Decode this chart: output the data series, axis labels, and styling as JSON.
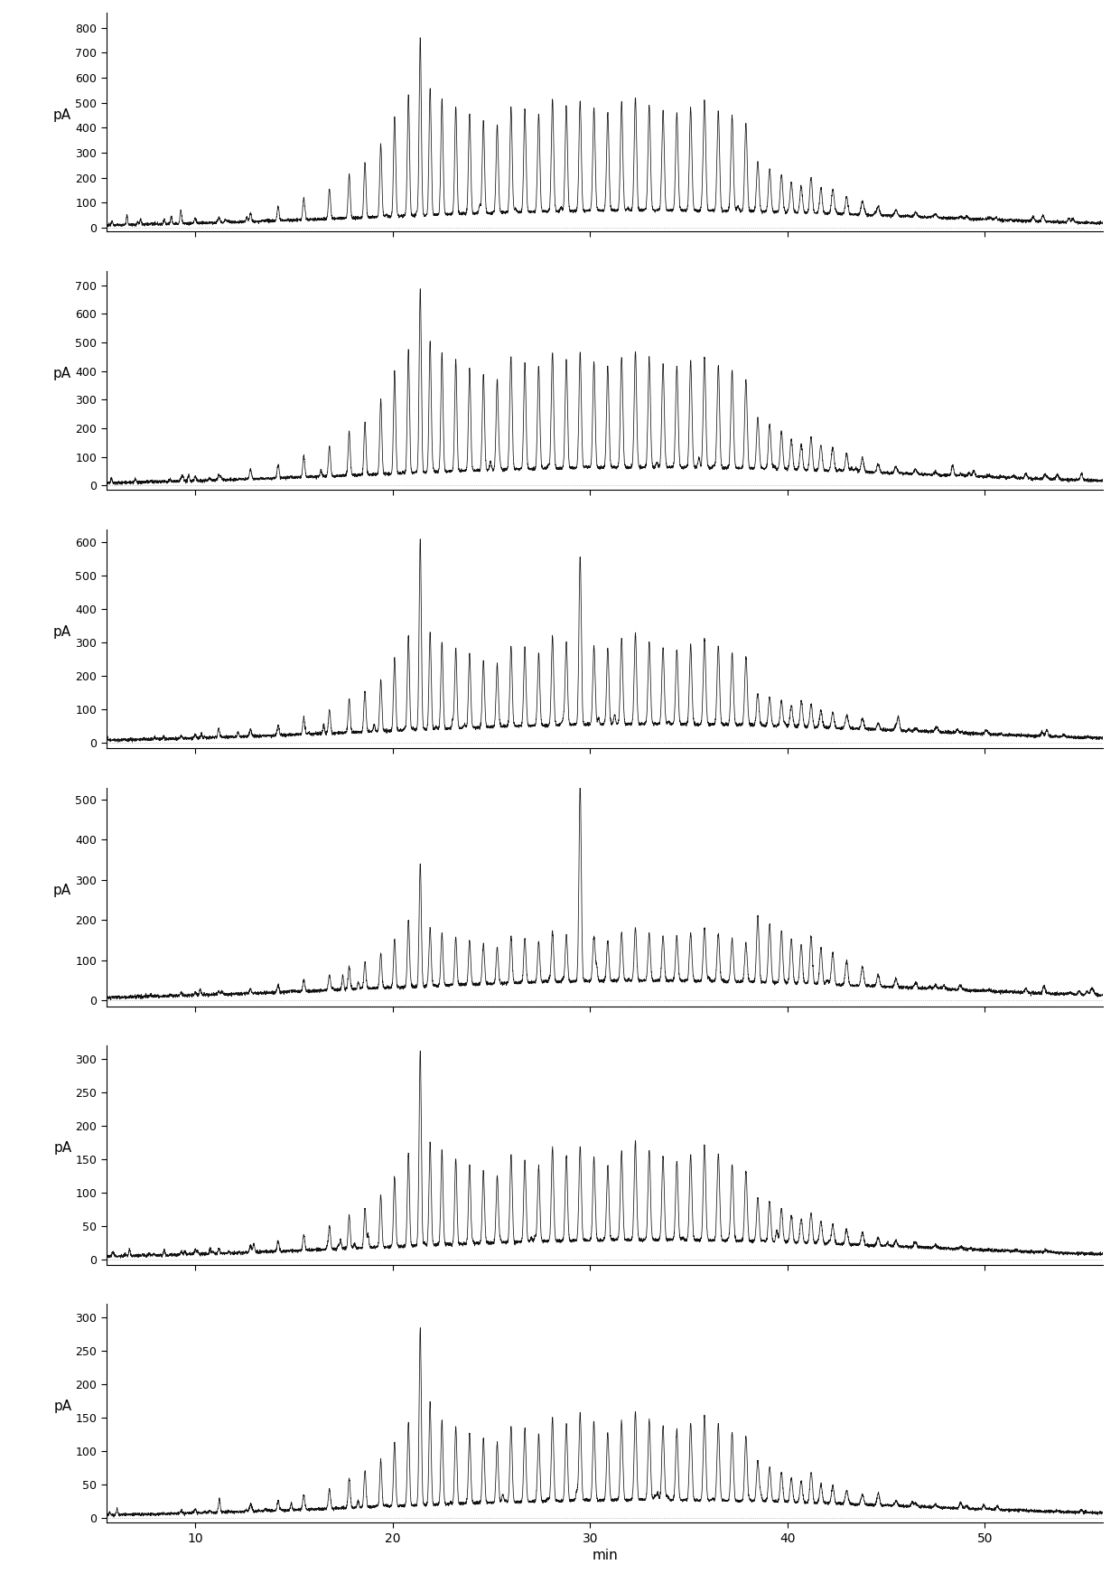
{
  "panels": [
    {
      "ylabel": "pA",
      "yticks": [
        0,
        100,
        200,
        300,
        400,
        500,
        600,
        700,
        800
      ],
      "ymax": 860,
      "ymin": -15
    },
    {
      "ylabel": "pA",
      "yticks": [
        0,
        100,
        200,
        300,
        400,
        500,
        600,
        700
      ],
      "ymax": 750,
      "ymin": -15
    },
    {
      "ylabel": "pA",
      "yticks": [
        0,
        100,
        200,
        300,
        400,
        500,
        600
      ],
      "ymax": 640,
      "ymin": -15
    },
    {
      "ylabel": "pA",
      "yticks": [
        0,
        100,
        200,
        300,
        400,
        500
      ],
      "ymax": 530,
      "ymin": -15
    },
    {
      "ylabel": "pA",
      "yticks": [
        0,
        50,
        100,
        150,
        200,
        250,
        300
      ],
      "ymax": 320,
      "ymin": -8
    },
    {
      "ylabel": "pA",
      "yticks": [
        0,
        50,
        100,
        150,
        200,
        250,
        300
      ],
      "ymax": 320,
      "ymin": -8
    }
  ],
  "xmin": 5.5,
  "xmax": 56.0,
  "xticks": [
    10,
    20,
    30,
    40,
    50
  ],
  "xlabel": "min",
  "background_color": "#ffffff",
  "line_color": "#111111",
  "baseline_color": "#999999",
  "peak_positions": [
    9.3,
    10.0,
    11.2,
    12.8,
    14.2,
    15.5,
    16.8,
    17.8,
    18.6,
    19.4,
    20.1,
    20.8,
    21.4,
    21.9,
    22.5,
    23.2,
    23.9,
    24.6,
    25.3,
    26.0,
    26.7,
    27.4,
    28.1,
    28.8,
    29.5,
    30.2,
    30.9,
    31.6,
    32.3,
    33.0,
    33.7,
    34.4,
    35.1,
    35.8,
    36.5,
    37.2,
    37.9,
    38.5,
    39.1,
    39.7,
    40.2,
    40.7,
    41.2,
    41.7,
    42.3,
    43.0,
    43.8,
    44.6,
    45.5,
    46.5,
    47.5,
    48.8,
    50.2
  ],
  "peak_heights_panel1": [
    12,
    18,
    20,
    35,
    55,
    85,
    120,
    175,
    210,
    290,
    400,
    480,
    700,
    510,
    460,
    430,
    400,
    370,
    350,
    420,
    410,
    390,
    450,
    420,
    440,
    410,
    390,
    430,
    450,
    420,
    400,
    390,
    410,
    430,
    400,
    380,
    350,
    200,
    170,
    150,
    120,
    105,
    130,
    100,
    90,
    70,
    55,
    35,
    25,
    18,
    12,
    8,
    4
  ],
  "peak_heights_panel2": [
    10,
    15,
    18,
    30,
    48,
    75,
    105,
    155,
    185,
    260,
    360,
    430,
    640,
    460,
    415,
    390,
    360,
    335,
    315,
    380,
    370,
    350,
    405,
    380,
    395,
    370,
    350,
    385,
    405,
    380,
    360,
    350,
    370,
    385,
    360,
    340,
    310,
    175,
    150,
    130,
    105,
    90,
    115,
    88,
    80,
    62,
    48,
    30,
    22,
    16,
    10,
    7,
    3
  ],
  "peak_heights_panel3": [
    7,
    10,
    12,
    20,
    30,
    50,
    70,
    100,
    115,
    155,
    220,
    280,
    570,
    290,
    260,
    240,
    220,
    200,
    185,
    240,
    235,
    215,
    265,
    245,
    505,
    235,
    215,
    255,
    270,
    245,
    230,
    220,
    240,
    255,
    235,
    215,
    200,
    95,
    85,
    75,
    62,
    55,
    68,
    50,
    45,
    38,
    30,
    18,
    13,
    9,
    7,
    4,
    2
  ],
  "peak_heights_panel4": [
    4,
    6,
    8,
    12,
    18,
    28,
    38,
    55,
    65,
    85,
    120,
    165,
    305,
    145,
    130,
    118,
    108,
    98,
    90,
    115,
    110,
    100,
    125,
    115,
    490,
    110,
    100,
    120,
    130,
    118,
    110,
    105,
    118,
    130,
    118,
    105,
    95,
    165,
    145,
    130,
    110,
    95,
    118,
    88,
    78,
    60,
    48,
    28,
    20,
    13,
    9,
    5,
    3
  ],
  "peak_heights_panel5": [
    4,
    6,
    7,
    10,
    16,
    24,
    35,
    50,
    60,
    78,
    105,
    140,
    290,
    155,
    140,
    128,
    118,
    108,
    100,
    128,
    122,
    112,
    140,
    128,
    142,
    125,
    112,
    132,
    148,
    135,
    125,
    118,
    128,
    142,
    128,
    115,
    105,
    65,
    58,
    50,
    40,
    36,
    45,
    32,
    28,
    22,
    18,
    11,
    8,
    6,
    4,
    3,
    1
  ],
  "peak_heights_panel6": [
    4,
    6,
    7,
    10,
    14,
    22,
    30,
    45,
    55,
    70,
    95,
    125,
    262,
    140,
    126,
    115,
    105,
    96,
    88,
    115,
    110,
    100,
    125,
    115,
    130,
    112,
    100,
    118,
    132,
    120,
    112,
    105,
    115,
    128,
    115,
    102,
    94,
    60,
    52,
    45,
    36,
    32,
    40,
    28,
    25,
    20,
    15,
    10,
    7,
    5,
    4,
    2,
    1
  ]
}
